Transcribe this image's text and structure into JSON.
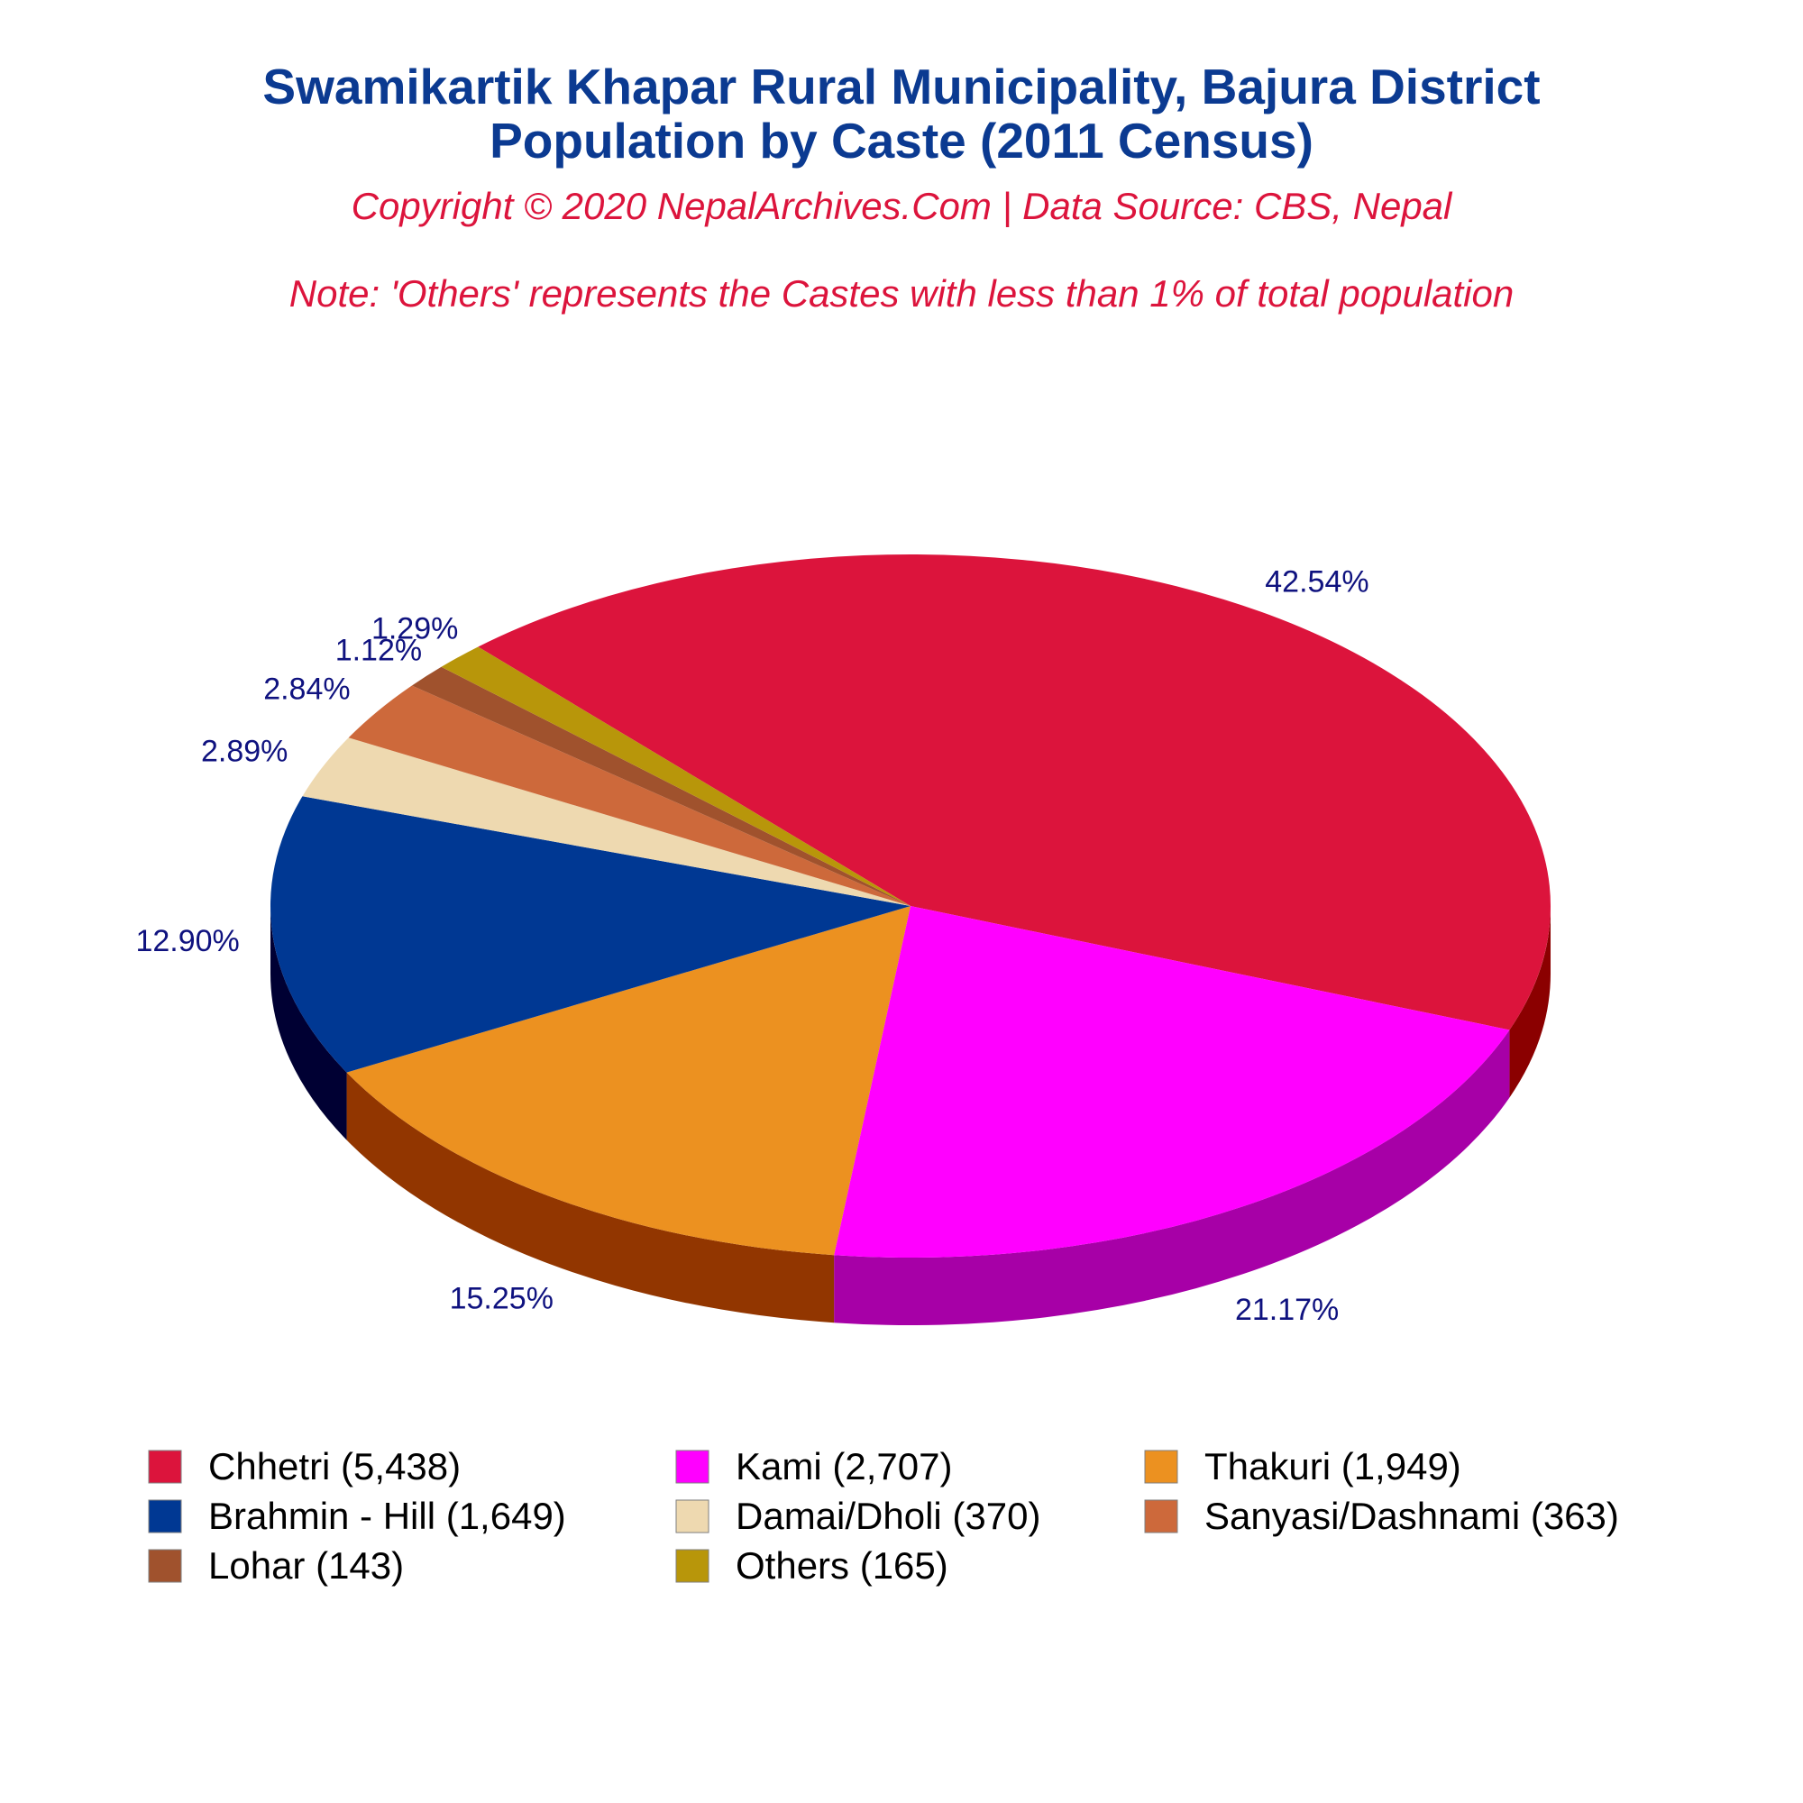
{
  "title_line1": "Swamikartik Khapar Rural Municipality, Bajura District",
  "title_line2": "Population by Caste (2011 Census)",
  "copyright": "Copyright © 2020 NepalArchives.Com | Data Source: CBS, Nepal",
  "note": "Note: 'Others' represents the Castes with less than 1% of total population",
  "chart_data": {
    "type": "pie",
    "style": "3d",
    "legend_position": "bottom",
    "categories": [
      "Chhetri",
      "Kami",
      "Thakuri",
      "Brahmin - Hill",
      "Damai/Dholi",
      "Sanyasi/Dashnami",
      "Lohar",
      "Others"
    ],
    "values": [
      5438,
      2707,
      1949,
      1649,
      370,
      363,
      143,
      165
    ],
    "percent_labels": [
      "42.54%",
      "21.17%",
      "15.25%",
      "12.90%",
      "2.89%",
      "2.84%",
      "1.12%",
      "1.29%"
    ],
    "legend_labels": [
      "Chhetri (5,438)",
      "Kami (2,707)",
      "Thakuri (1,949)",
      "Brahmin - Hill (1,649)",
      "Damai/Dholi (370)",
      "Sanyasi/Dashnami (363)",
      "Lohar (143)",
      "Others (165)"
    ],
    "colors": [
      "#dc143c",
      "#ff00ff",
      "#ec9120",
      "#003893",
      "#eed9b0",
      "#cd693b",
      "#a0522d",
      "#b8960a"
    ],
    "side_colors": [
      "#8b0000",
      "#a700a7",
      "#923600",
      "#000033",
      "#b8a57e",
      "#8a4020",
      "#6b3314",
      "#7c6500"
    ]
  }
}
